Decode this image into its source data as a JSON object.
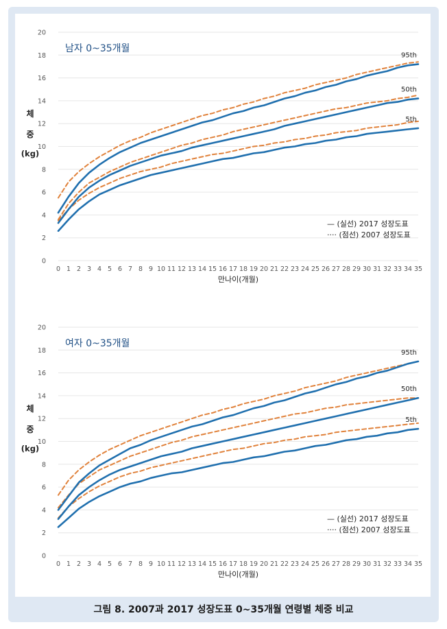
{
  "caption": "그림 8. 2007과 2017 성장도표 0~35개월 연령별 체중 비교",
  "colors": {
    "solid": "#1f6fae",
    "dashed": "#e0813a",
    "grid": "#e6e6e6",
    "axis_text": "#555555"
  },
  "chart_data": [
    {
      "type": "line",
      "title": "남자 0~35개월",
      "xlabel": "만나이(개월)",
      "ylabel": [
        "체",
        "중",
        "(kg)"
      ],
      "ylim": [
        0,
        20
      ],
      "yticks": [
        0,
        2,
        4,
        6,
        8,
        10,
        12,
        14,
        16,
        18,
        20
      ],
      "x": [
        0,
        1,
        2,
        3,
        4,
        5,
        6,
        7,
        8,
        9,
        10,
        11,
        12,
        13,
        14,
        15,
        16,
        17,
        18,
        19,
        20,
        21,
        22,
        23,
        24,
        25,
        26,
        27,
        28,
        29,
        30,
        31,
        32,
        33,
        34,
        35
      ],
      "grid": true,
      "legend_position": "bottom-right",
      "legend": [
        "— (실선) 2017 성장도표",
        "···· (점선) 2007 성장도표"
      ],
      "series": [
        {
          "name": "95th",
          "label": "95th",
          "style": "solid-2017",
          "values": [
            4.2,
            5.6,
            6.8,
            7.7,
            8.4,
            9.0,
            9.5,
            9.9,
            10.3,
            10.6,
            10.9,
            11.2,
            11.5,
            11.8,
            12.1,
            12.3,
            12.6,
            12.9,
            13.1,
            13.4,
            13.6,
            13.9,
            14.2,
            14.4,
            14.7,
            14.9,
            15.2,
            15.4,
            15.7,
            15.9,
            16.2,
            16.4,
            16.6,
            16.9,
            17.1,
            17.2
          ]
        },
        {
          "name": "50th",
          "label": "50th",
          "style": "solid-2017",
          "values": [
            3.3,
            4.5,
            5.6,
            6.4,
            7.0,
            7.5,
            7.9,
            8.3,
            8.6,
            8.9,
            9.2,
            9.4,
            9.6,
            9.9,
            10.1,
            10.3,
            10.5,
            10.7,
            10.9,
            11.1,
            11.3,
            11.5,
            11.8,
            12.0,
            12.2,
            12.4,
            12.6,
            12.8,
            13.0,
            13.2,
            13.4,
            13.6,
            13.8,
            13.9,
            14.1,
            14.2
          ]
        },
        {
          "name": "5th",
          "label": "5th",
          "style": "solid-2017",
          "values": [
            2.6,
            3.6,
            4.5,
            5.2,
            5.8,
            6.2,
            6.6,
            6.9,
            7.2,
            7.5,
            7.7,
            7.9,
            8.1,
            8.3,
            8.5,
            8.7,
            8.9,
            9.0,
            9.2,
            9.4,
            9.5,
            9.7,
            9.9,
            10.0,
            10.2,
            10.3,
            10.5,
            10.6,
            10.8,
            10.9,
            11.1,
            11.2,
            11.3,
            11.4,
            11.5,
            11.6
          ]
        },
        {
          "name": "95th 2007",
          "style": "dashed-2007",
          "values": [
            5.5,
            6.9,
            7.8,
            8.5,
            9.1,
            9.6,
            10.1,
            10.5,
            10.8,
            11.2,
            11.5,
            11.8,
            12.1,
            12.4,
            12.7,
            12.9,
            13.2,
            13.4,
            13.7,
            13.9,
            14.2,
            14.4,
            14.7,
            14.9,
            15.1,
            15.4,
            15.6,
            15.8,
            16.0,
            16.3,
            16.5,
            16.7,
            16.9,
            17.1,
            17.3,
            17.4
          ]
        },
        {
          "name": "50th 2007",
          "style": "dashed-2007",
          "values": [
            3.6,
            5.0,
            6.0,
            6.8,
            7.3,
            7.8,
            8.2,
            8.6,
            8.9,
            9.2,
            9.5,
            9.8,
            10.1,
            10.3,
            10.6,
            10.8,
            11.0,
            11.3,
            11.5,
            11.7,
            11.9,
            12.1,
            12.3,
            12.5,
            12.7,
            12.9,
            13.1,
            13.3,
            13.4,
            13.6,
            13.8,
            13.9,
            14.0,
            14.2,
            14.3,
            14.5
          ]
        },
        {
          "name": "5th 2007",
          "style": "dashed-2007",
          "values": [
            3.5,
            4.5,
            5.3,
            5.9,
            6.4,
            6.8,
            7.2,
            7.5,
            7.8,
            8.0,
            8.2,
            8.5,
            8.7,
            8.9,
            9.1,
            9.3,
            9.4,
            9.6,
            9.8,
            10.0,
            10.1,
            10.3,
            10.4,
            10.6,
            10.7,
            10.9,
            11.0,
            11.2,
            11.3,
            11.4,
            11.6,
            11.7,
            11.8,
            11.9,
            12.1,
            12.2
          ]
        }
      ]
    },
    {
      "type": "line",
      "title": "여자 0~35개월",
      "xlabel": "만나이(개월)",
      "ylabel": [
        "체",
        "중",
        "(kg)"
      ],
      "ylim": [
        0,
        20
      ],
      "yticks": [
        0,
        2,
        4,
        6,
        8,
        10,
        12,
        14,
        16,
        18,
        20
      ],
      "x": [
        0,
        1,
        2,
        3,
        4,
        5,
        6,
        7,
        8,
        9,
        10,
        11,
        12,
        13,
        14,
        15,
        16,
        17,
        18,
        19,
        20,
        21,
        22,
        23,
        24,
        25,
        26,
        27,
        28,
        29,
        30,
        31,
        32,
        33,
        34,
        35
      ],
      "grid": true,
      "legend_position": "bottom-right",
      "legend": [
        "— (실선) 2017 성장도표",
        "···· (점선) 2007 성장도표"
      ],
      "series": [
        {
          "name": "95th",
          "label": "95th",
          "style": "solid-2017",
          "values": [
            4.0,
            5.2,
            6.4,
            7.2,
            7.9,
            8.4,
            8.9,
            9.4,
            9.7,
            10.1,
            10.4,
            10.7,
            11.0,
            11.3,
            11.5,
            11.8,
            12.1,
            12.3,
            12.6,
            12.9,
            13.1,
            13.4,
            13.6,
            13.9,
            14.2,
            14.4,
            14.7,
            15.0,
            15.2,
            15.5,
            15.7,
            16.0,
            16.2,
            16.5,
            16.8,
            17.0
          ]
        },
        {
          "name": "50th",
          "label": "50th",
          "style": "solid-2017",
          "values": [
            3.2,
            4.3,
            5.3,
            6.0,
            6.6,
            7.1,
            7.5,
            7.8,
            8.1,
            8.4,
            8.7,
            8.9,
            9.1,
            9.4,
            9.6,
            9.8,
            10.0,
            10.2,
            10.4,
            10.6,
            10.8,
            11.0,
            11.2,
            11.4,
            11.6,
            11.8,
            12.0,
            12.2,
            12.4,
            12.6,
            12.8,
            13.0,
            13.2,
            13.4,
            13.6,
            13.8
          ]
        },
        {
          "name": "5th",
          "label": "5th",
          "style": "solid-2017",
          "values": [
            2.5,
            3.3,
            4.1,
            4.7,
            5.2,
            5.6,
            6.0,
            6.3,
            6.5,
            6.8,
            7.0,
            7.2,
            7.3,
            7.5,
            7.7,
            7.9,
            8.1,
            8.2,
            8.4,
            8.6,
            8.7,
            8.9,
            9.1,
            9.2,
            9.4,
            9.6,
            9.7,
            9.9,
            10.1,
            10.2,
            10.4,
            10.5,
            10.7,
            10.8,
            11.0,
            11.1
          ]
        },
        {
          "name": "95th 2007",
          "style": "dashed-2007",
          "values": [
            5.3,
            6.6,
            7.5,
            8.2,
            8.8,
            9.3,
            9.7,
            10.1,
            10.5,
            10.8,
            11.1,
            11.4,
            11.7,
            12.0,
            12.3,
            12.5,
            12.8,
            13.0,
            13.3,
            13.5,
            13.7,
            14.0,
            14.2,
            14.4,
            14.7,
            14.9,
            15.1,
            15.3,
            15.6,
            15.8,
            16.0,
            16.2,
            16.4,
            16.6,
            16.8,
            17.0
          ]
        },
        {
          "name": "50th 2007",
          "style": "dashed-2007",
          "values": [
            4.2,
            5.3,
            6.3,
            6.9,
            7.5,
            7.9,
            8.3,
            8.7,
            9.0,
            9.3,
            9.6,
            9.9,
            10.1,
            10.4,
            10.6,
            10.8,
            11.0,
            11.2,
            11.4,
            11.6,
            11.8,
            12.0,
            12.2,
            12.4,
            12.5,
            12.7,
            12.9,
            13.0,
            13.2,
            13.3,
            13.4,
            13.5,
            13.6,
            13.7,
            13.8,
            13.8
          ]
        },
        {
          "name": "5th 2007",
          "style": "dashed-2007",
          "values": [
            3.3,
            4.3,
            5.0,
            5.6,
            6.1,
            6.5,
            6.9,
            7.2,
            7.4,
            7.7,
            7.9,
            8.1,
            8.3,
            8.5,
            8.7,
            8.9,
            9.1,
            9.3,
            9.4,
            9.6,
            9.8,
            9.9,
            10.1,
            10.2,
            10.4,
            10.5,
            10.6,
            10.8,
            10.9,
            11.0,
            11.1,
            11.2,
            11.3,
            11.4,
            11.5,
            11.6
          ]
        }
      ]
    }
  ]
}
